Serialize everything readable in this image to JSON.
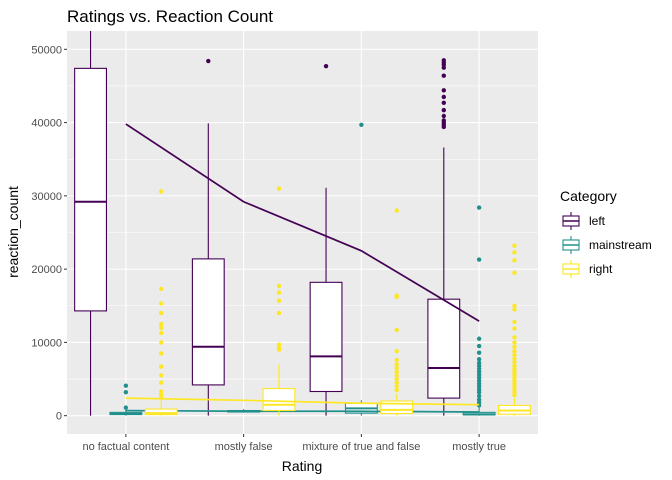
{
  "chart_data": {
    "type": "box",
    "title": "Ratings vs. Reaction Count",
    "xlabel": "Rating",
    "ylabel": "reaction_count",
    "categories": [
      "no factual content",
      "mostly false",
      "mixture of true and false",
      "mostly true"
    ],
    "ylim": [
      -2500,
      52500
    ],
    "yticks": [
      0,
      10000,
      20000,
      30000,
      40000,
      50000
    ],
    "ytick_labels": [
      "0",
      "10000",
      "20000",
      "30000",
      "40000",
      "50000"
    ],
    "grid": true,
    "legend": {
      "title": "Category",
      "position": "right"
    },
    "series": [
      {
        "name": "left",
        "color": "#440154",
        "boxes": [
          {
            "q1": 14300,
            "median": 29200,
            "q3": 47400,
            "lower": 0,
            "upper": 52500,
            "outliers": []
          },
          {
            "q1": 4200,
            "median": 9400,
            "q3": 21400,
            "lower": 0,
            "upper": 39900,
            "outliers": [
              48400
            ]
          },
          {
            "q1": 3300,
            "median": 8100,
            "q3": 18200,
            "lower": 0,
            "upper": 31100,
            "outliers": [
              47700
            ]
          },
          {
            "q1": 2400,
            "median": 6500,
            "q3": 15900,
            "lower": 0,
            "upper": 36600,
            "outliers": [
              39400,
              39700,
              40000,
              40300,
              40900,
              41700,
              42700,
              43500,
              44400,
              46400,
              47500,
              47900,
              48200,
              48500
            ]
          }
        ],
        "trend": [
          39800,
          29200,
          22500,
          12900
        ]
      },
      {
        "name": "mainstream",
        "color": "#21908C",
        "boxes": [
          {
            "q1": 150,
            "median": 250,
            "q3": 450,
            "lower": 0,
            "upper": 900,
            "outliers": [
              1100,
              3200,
              4100
            ]
          },
          {
            "q1": 500,
            "median": 600,
            "q3": 700,
            "lower": 400,
            "upper": 900,
            "outliers": []
          },
          {
            "q1": 350,
            "median": 1000,
            "q3": 1700,
            "lower": 0,
            "upper": 2100,
            "outliers": [
              39700
            ]
          },
          {
            "q1": 100,
            "median": 200,
            "q3": 450,
            "lower": 0,
            "upper": 1100,
            "outliers": [
              1400,
              1800,
              2200,
              2700,
              3200,
              3600,
              4000,
              4400,
              4800,
              5200,
              5600,
              6000,
              6400,
              6800,
              7200,
              7700,
              8600,
              9500,
              10500,
              21300,
              28400
            ]
          }
        ],
        "trend": [
          700,
          600,
          600,
          500
        ]
      },
      {
        "name": "right",
        "color": "#FDE725",
        "boxes": [
          {
            "q1": 150,
            "median": 350,
            "q3": 900,
            "lower": 0,
            "upper": 2200,
            "outliers": [
              2500,
              2900,
              3300,
              4500,
              5500,
              6700,
              8500,
              10000,
              11300,
              12000,
              12500,
              14000,
              15300,
              17300,
              30600
            ]
          },
          {
            "q1": 700,
            "median": 1500,
            "q3": 3700,
            "lower": 0,
            "upper": 7000,
            "outliers": [
              9000,
              9300,
              9700,
              14000,
              15700,
              16800,
              17700,
              31000
            ]
          },
          {
            "q1": 300,
            "median": 800,
            "q3": 2000,
            "lower": 0,
            "upper": 3000,
            "outliers": [
              3500,
              4000,
              4500,
              5000,
              5500,
              6000,
              6500,
              7000,
              7600,
              8800,
              11700,
              16200,
              16400,
              28000
            ]
          },
          {
            "q1": 200,
            "median": 700,
            "q3": 1400,
            "lower": 0,
            "upper": 2400,
            "outliers": [
              2800,
              3200,
              3600,
              4000,
              4400,
              4800,
              5200,
              5600,
              6000,
              6400,
              6800,
              7300,
              7800,
              8300,
              8800,
              9400,
              10000,
              10700,
              11900,
              12800,
              14500,
              15000,
              19500,
              21200,
              22300,
              23200
            ]
          }
        ],
        "trend": [
          2400,
          2100,
          1700,
          1500
        ]
      }
    ]
  }
}
